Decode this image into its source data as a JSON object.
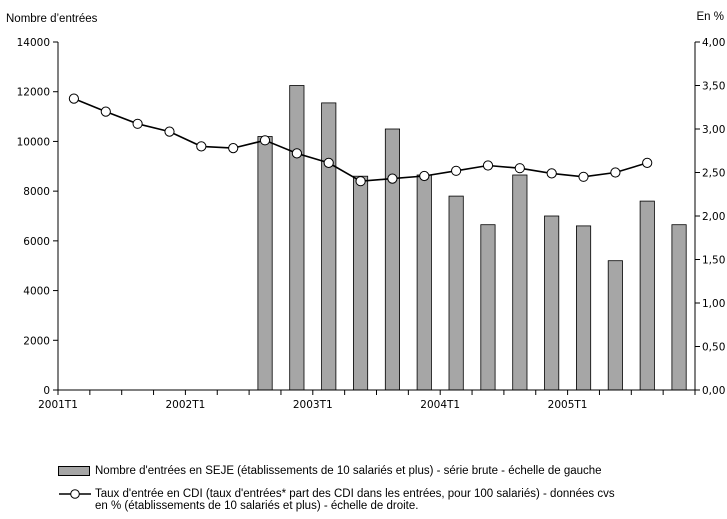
{
  "chart_data": {
    "type": "bar+line",
    "left_axis_label": "Nombre d’entrées",
    "right_axis_label": "En %",
    "x_tick_labels": [
      "2001T1",
      "2002T1",
      "2003T1",
      "2004T1",
      "2005T1"
    ],
    "y_left": {
      "ylim": [
        0,
        14000
      ],
      "ticks": [
        "0",
        "2000",
        "4000",
        "6000",
        "8000",
        "10000",
        "12000",
        "14000"
      ]
    },
    "y_right": {
      "ylim": [
        0,
        4.0
      ],
      "ticks": [
        "0,00",
        "0,50",
        "1,00",
        "1,50",
        "2,00",
        "2,50",
        "3,00",
        "3,50",
        "4,00"
      ]
    },
    "quarters": [
      "2001T1",
      "2001T2",
      "2001T3",
      "2001T4",
      "2002T1",
      "2002T2",
      "2002T3",
      "2002T4",
      "2003T1",
      "2003T2",
      "2003T3",
      "2003T4",
      "2004T1",
      "2004T2",
      "2004T3",
      "2004T4",
      "2005T1",
      "2005T2",
      "2005T3",
      "2005T4"
    ],
    "series": [
      {
        "name": "Nombre d’entrées en SEJE (établissements de 10 salariés et plus) - série brute - échelle de gauche",
        "type": "bar",
        "axis": "left",
        "color": "#a6a6a6",
        "values": [
          null,
          null,
          null,
          null,
          null,
          null,
          10200,
          12250,
          11550,
          8600,
          10500,
          8650,
          7800,
          6650,
          8650,
          7000,
          6600,
          5200,
          7600,
          6650
        ]
      },
      {
        "name": "Taux d’entrée en CDI (taux d’entrées* part des CDI dans les entrées, pour 100 salariés) - données cvs en % (établissements de 10 salariés et plus) - échelle de droite.",
        "type": "line",
        "axis": "right",
        "color": "#000000",
        "values": [
          3.35,
          3.2,
          3.06,
          2.97,
          2.8,
          2.78,
          2.87,
          2.72,
          2.61,
          2.4,
          2.43,
          2.46,
          2.52,
          2.58,
          2.55,
          2.49,
          2.45,
          2.5,
          2.61,
          null
        ]
      }
    ],
    "grid": false,
    "legend_position": "bottom"
  },
  "legend": {
    "bar_label": "Nombre d'entrées en SEJE (établissements de 10 salariés et plus) - série brute - échelle de gauche",
    "line_label_1": "Taux d'entrée en CDI (taux d'entrées* part des CDI dans les entrées, pour 100 salariés) - données cvs",
    "line_label_2": "en % (établissements de 10 salariés et plus) - échelle de droite."
  }
}
